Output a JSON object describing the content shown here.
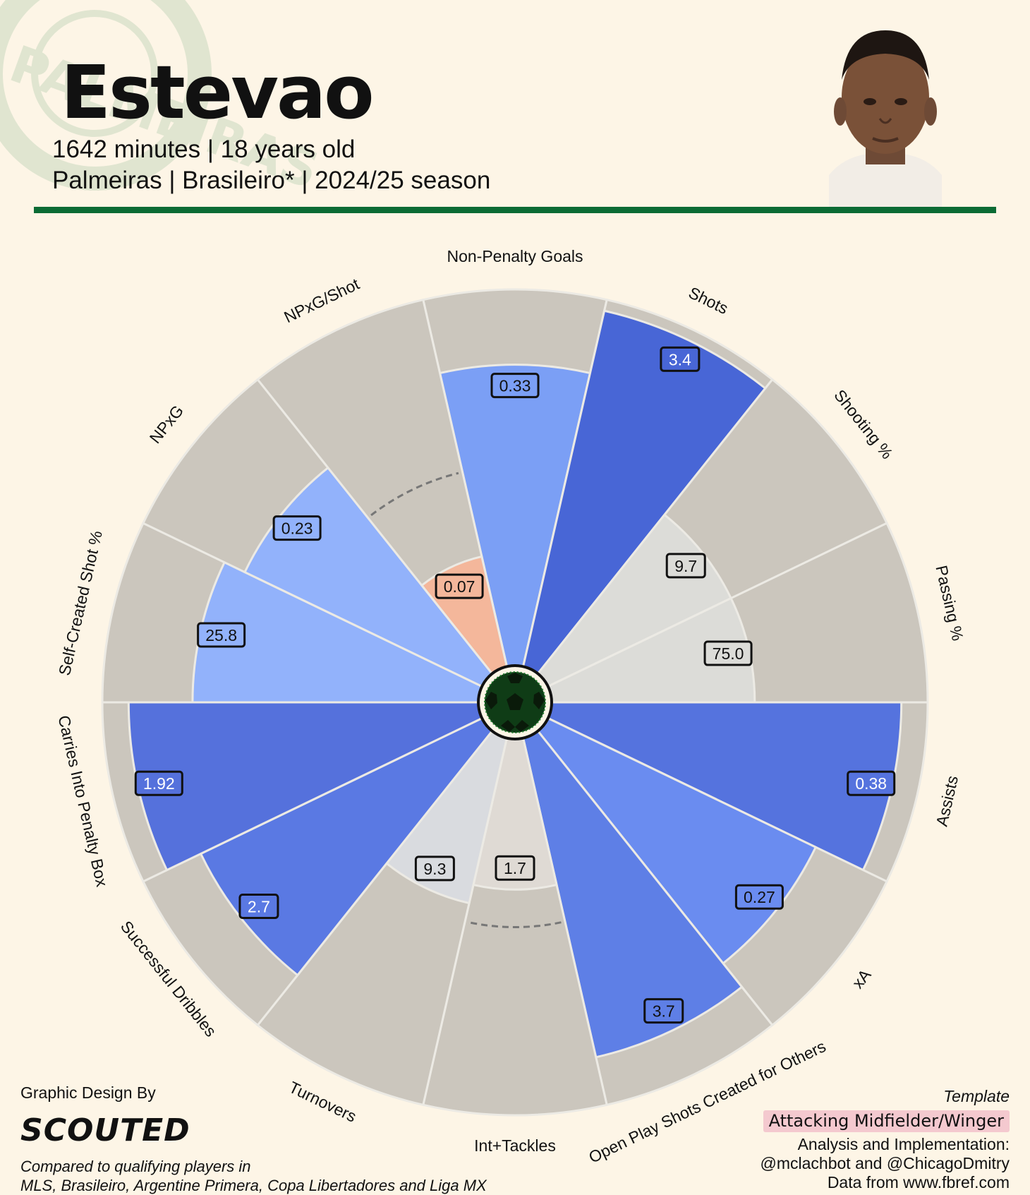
{
  "header": {
    "player_name": "Estevao",
    "subtitle_line1": "1642 minutes | 18 years old",
    "subtitle_line2": "Palmeiras | Brasileiro* | 2024/25 season",
    "accent_color": "#0b6b34",
    "crest_text": "PALMEIRAS",
    "photo_icon": "player-portrait"
  },
  "chart_data": {
    "type": "pizza",
    "categories": [
      "Non-Penalty Goals",
      "Shots",
      "Shooting %",
      "Passing %",
      "Assists",
      "xA",
      "Open Play Shots Created for Others",
      "Int+Tackles",
      "Turnovers",
      "Successful Dribbles",
      "Carries Into Penalty Box",
      "Self-Created Shot %",
      "NPxG",
      "NPxG/Shot"
    ],
    "values": [
      "0.33",
      "3.4",
      "9.7",
      "75.0",
      "0.38",
      "0.27",
      "3.7",
      "1.7",
      "9.3",
      "2.7",
      "1.92",
      "25.8",
      "0.23",
      "0.07"
    ],
    "percentiles": [
      80,
      97,
      54,
      54,
      93,
      79,
      87,
      40,
      45,
      83,
      93,
      76,
      70,
      30
    ],
    "fill_colors": [
      "#7b9ff5",
      "#4866d6",
      "#dcdcd8",
      "#dcdcd8",
      "#5573de",
      "#6a8cf0",
      "#5e7fe6",
      "#dfdad4",
      "#d9dbdf",
      "#5a79e3",
      "#5571dc",
      "#92b2fb",
      "#92b2fb",
      "#f4b79b"
    ],
    "label_text_colors": [
      "#111111",
      "#ffffff",
      "#111111",
      "#111111",
      "#ffffff",
      "#111111",
      "#111111",
      "#111111",
      "#111111",
      "#ffffff",
      "#ffffff",
      "#111111",
      "#111111",
      "#111111"
    ],
    "reference_arcs": [
      {
        "category": "NPxG/Shot",
        "percentile": 53
      },
      {
        "category": "Int+Tackles",
        "percentile": 50
      }
    ],
    "background_color": "#cbc6bd",
    "center_icon": "soccer-ball-icon"
  },
  "footer": {
    "design_label": "Graphic Design By",
    "brand": "SCOUTED",
    "compare_line1": "Compared to qualifying players in",
    "compare_line2": "MLS, Brasileiro, Argentine Primera, Copa Libertadores and Liga MX",
    "template_label": "Template",
    "template_value": "Attacking Midfielder/Winger",
    "analysis_line1": "Analysis and Implementation:",
    "analysis_line2": "@mclachbot and @ChicagoDmitry",
    "source": "Data from www.fbref.com"
  }
}
